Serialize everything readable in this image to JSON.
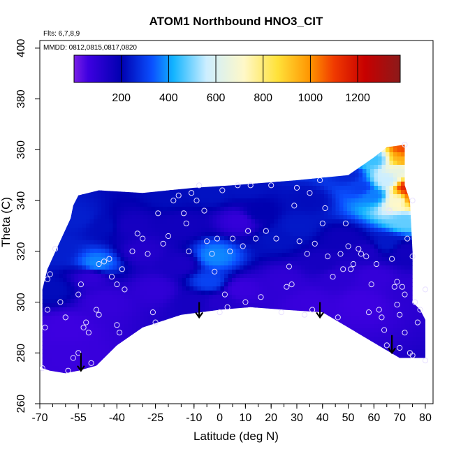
{
  "chart_data": {
    "type": "heatmap",
    "title": "ATOM1 Northbound HNO3_CIT",
    "flights_label": "Flts: 6,7,8,9",
    "mmdd_label": "MMDD: 0812,0815,0817,0820",
    "xlabel": "Latitude (deg N)",
    "ylabel": "Theta (C)",
    "xlim": [
      -70,
      83
    ],
    "ylim": [
      260,
      403
    ],
    "x_ticks": [
      -70,
      -55,
      -40,
      -25,
      -10,
      0,
      10,
      20,
      30,
      40,
      50,
      60,
      70,
      80
    ],
    "y_ticks": [
      260,
      280,
      300,
      320,
      340,
      360,
      380,
      400
    ],
    "colorbar": {
      "ticks": [
        200,
        400,
        600,
        800,
        1000,
        1200
      ],
      "range": [
        0,
        1380
      ],
      "colors": [
        "#7a1fe6",
        "#3d00e0",
        "#0000b0",
        "#0a50ff",
        "#12b4ff",
        "#cceeff",
        "#fff8c8",
        "#ffe23a",
        "#ff9400",
        "#f03a00",
        "#c80000",
        "#8b1a1a"
      ],
      "color_stops": [
        0,
        60,
        200,
        330,
        420,
        560,
        720,
        860,
        1000,
        1100,
        1230,
        1380
      ]
    },
    "field_boundary": [
      [
        -69,
        274
      ],
      [
        -69,
        305
      ],
      [
        -67,
        313
      ],
      [
        -63,
        322
      ],
      [
        -58,
        333
      ],
      [
        -57,
        338
      ],
      [
        -55,
        342
      ],
      [
        -47,
        344
      ],
      [
        -30,
        343
      ],
      [
        -10,
        345
      ],
      [
        5,
        346
      ],
      [
        30,
        348
      ],
      [
        50,
        350
      ],
      [
        60,
        357
      ],
      [
        65,
        361
      ],
      [
        72,
        362
      ],
      [
        72,
        346
      ],
      [
        74,
        340
      ],
      [
        75,
        320
      ],
      [
        75,
        300
      ],
      [
        78,
        297
      ],
      [
        80,
        293
      ],
      [
        80,
        278
      ],
      [
        70,
        278
      ],
      [
        60,
        284
      ],
      [
        40,
        296
      ],
      [
        25,
        297
      ],
      [
        12,
        298
      ],
      [
        0,
        297
      ],
      [
        -15,
        295
      ],
      [
        -30,
        290
      ],
      [
        -40,
        283
      ],
      [
        -48,
        275
      ],
      [
        -55,
        273
      ],
      [
        -60,
        272
      ],
      [
        -66,
        273
      ]
    ],
    "concentration_points": [
      {
        "lat": -50,
        "theta": 310,
        "value": 90
      },
      {
        "lat": -60,
        "theta": 290,
        "value": 60
      },
      {
        "lat": -45,
        "theta": 300,
        "value": 80
      },
      {
        "lat": -58,
        "theta": 278,
        "value": 70
      },
      {
        "lat": -35,
        "theta": 330,
        "value": 150
      },
      {
        "lat": -45,
        "theta": 330,
        "value": 220
      },
      {
        "lat": -55,
        "theta": 333,
        "value": 250
      },
      {
        "lat": -48,
        "theta": 315,
        "value": 380
      },
      {
        "lat": -30,
        "theta": 320,
        "value": 120
      },
      {
        "lat": -25,
        "theta": 305,
        "value": 90
      },
      {
        "lat": -15,
        "theta": 315,
        "value": 140
      },
      {
        "lat": -15,
        "theta": 330,
        "value": 160
      },
      {
        "lat": -20,
        "theta": 342,
        "value": 220
      },
      {
        "lat": -3,
        "theta": 343,
        "value": 230
      },
      {
        "lat": -2,
        "theta": 318,
        "value": 380
      },
      {
        "lat": -4,
        "theta": 308,
        "value": 310
      },
      {
        "lat": -10,
        "theta": 300,
        "value": 150
      },
      {
        "lat": 8,
        "theta": 332,
        "value": 80
      },
      {
        "lat": 8,
        "theta": 305,
        "value": 70
      },
      {
        "lat": 15,
        "theta": 335,
        "value": 200
      },
      {
        "lat": 22,
        "theta": 325,
        "value": 230
      },
      {
        "lat": 30,
        "theta": 330,
        "value": 240
      },
      {
        "lat": 35,
        "theta": 340,
        "value": 220
      },
      {
        "lat": 40,
        "theta": 315,
        "value": 150
      },
      {
        "lat": 25,
        "theta": 308,
        "value": 90
      },
      {
        "lat": 45,
        "theta": 310,
        "value": 100
      },
      {
        "lat": 48,
        "theta": 325,
        "value": 170
      },
      {
        "lat": 35,
        "theta": 300,
        "value": 70
      },
      {
        "lat": 55,
        "theta": 300,
        "value": 60
      },
      {
        "lat": 60,
        "theta": 310,
        "value": 80
      },
      {
        "lat": 57,
        "theta": 320,
        "value": 140
      },
      {
        "lat": 65,
        "theta": 323,
        "value": 240
      },
      {
        "lat": 72,
        "theta": 320,
        "value": 160
      },
      {
        "lat": 75,
        "theta": 305,
        "value": 100
      },
      {
        "lat": 60,
        "theta": 342,
        "value": 370
      },
      {
        "lat": 65,
        "theta": 348,
        "value": 560
      },
      {
        "lat": 70,
        "theta": 352,
        "value": 650
      },
      {
        "lat": 70,
        "theta": 340,
        "value": 700
      },
      {
        "lat": 72,
        "theta": 332,
        "value": 480
      },
      {
        "lat": 74,
        "theta": 341,
        "value": 1050
      },
      {
        "lat": 71,
        "theta": 356,
        "value": 950
      },
      {
        "lat": 72,
        "theta": 360,
        "value": 1080
      },
      {
        "lat": 73,
        "theta": 345,
        "value": 1150
      },
      {
        "lat": 55,
        "theta": 345,
        "value": 300
      },
      {
        "lat": 50,
        "theta": 350,
        "value": 260
      },
      {
        "lat": 60,
        "theta": 356,
        "value": 450
      },
      {
        "lat": -65,
        "theta": 305,
        "value": 220
      },
      {
        "lat": 10,
        "theta": 345,
        "value": 230
      },
      {
        "lat": 0,
        "theta": 300,
        "value": 120
      },
      {
        "lat": -63,
        "theta": 320,
        "value": 250
      }
    ],
    "sample_points": [
      [
        -69,
        274
      ],
      [
        -68,
        290
      ],
      [
        -67,
        297
      ],
      [
        -67,
        309
      ],
      [
        -66,
        311
      ],
      [
        -64,
        321
      ],
      [
        -62,
        300
      ],
      [
        -60,
        294
      ],
      [
        -59,
        273
      ],
      [
        -57,
        278
      ],
      [
        -55,
        280
      ],
      [
        -55,
        303
      ],
      [
        -54,
        307
      ],
      [
        -53,
        290
      ],
      [
        -52,
        292
      ],
      [
        -51,
        288
      ],
      [
        -50,
        276
      ],
      [
        -48,
        297
      ],
      [
        -47,
        295
      ],
      [
        -47,
        315
      ],
      [
        -45,
        316
      ],
      [
        -43,
        317
      ],
      [
        -42,
        310
      ],
      [
        -40,
        307
      ],
      [
        -40,
        291
      ],
      [
        -39,
        288
      ],
      [
        -38,
        313
      ],
      [
        -37,
        305
      ],
      [
        -34,
        320
      ],
      [
        -32,
        327
      ],
      [
        -30,
        325
      ],
      [
        -28,
        319
      ],
      [
        -26,
        296
      ],
      [
        -25,
        292
      ],
      [
        -24,
        335
      ],
      [
        -22,
        323
      ],
      [
        -20,
        326
      ],
      [
        -18,
        340
      ],
      [
        -16,
        342
      ],
      [
        -14,
        335
      ],
      [
        -13,
        331
      ],
      [
        -12,
        320
      ],
      [
        -11,
        343
      ],
      [
        -9,
        340
      ],
      [
        -8,
        346
      ],
      [
        -6,
        336
      ],
      [
        -5,
        324
      ],
      [
        -3,
        319
      ],
      [
        -2,
        312
      ],
      [
        -1,
        325
      ],
      [
        0,
        296
      ],
      [
        1,
        344
      ],
      [
        2,
        303
      ],
      [
        3,
        298
      ],
      [
        4,
        320
      ],
      [
        5,
        325
      ],
      [
        7,
        346
      ],
      [
        9,
        322
      ],
      [
        10,
        300
      ],
      [
        11,
        328
      ],
      [
        12,
        346
      ],
      [
        14,
        325
      ],
      [
        16,
        302
      ],
      [
        18,
        328
      ],
      [
        20,
        346
      ],
      [
        22,
        325
      ],
      [
        24,
        296
      ],
      [
        26,
        306
      ],
      [
        27,
        314
      ],
      [
        28,
        307
      ],
      [
        29,
        338
      ],
      [
        30,
        345
      ],
      [
        31,
        324
      ],
      [
        33,
        295
      ],
      [
        34,
        319
      ],
      [
        35,
        343
      ],
      [
        36,
        297
      ],
      [
        37,
        323
      ],
      [
        39,
        348
      ],
      [
        40,
        331
      ],
      [
        41,
        337
      ],
      [
        42,
        318
      ],
      [
        44,
        310
      ],
      [
        46,
        294
      ],
      [
        47,
        319
      ],
      [
        48,
        313
      ],
      [
        49,
        331
      ],
      [
        50,
        322
      ],
      [
        51,
        313
      ],
      [
        52,
        315
      ],
      [
        54,
        321
      ],
      [
        55,
        319
      ],
      [
        57,
        318
      ],
      [
        58,
        296
      ],
      [
        59,
        307
      ],
      [
        61,
        315
      ],
      [
        62,
        297
      ],
      [
        63,
        294
      ],
      [
        64,
        289
      ],
      [
        65,
        283
      ],
      [
        66,
        336
      ],
      [
        67,
        317
      ],
      [
        68,
        306
      ],
      [
        69,
        308
      ],
      [
        69,
        299
      ],
      [
        70,
        295
      ],
      [
        70,
        282
      ],
      [
        71,
        306
      ],
      [
        72,
        303
      ],
      [
        72,
        288
      ],
      [
        73,
        325
      ],
      [
        74,
        280
      ],
      [
        75,
        279
      ],
      [
        76,
        300
      ],
      [
        77,
        292
      ],
      [
        78,
        297
      ],
      [
        80,
        305
      ],
      [
        80,
        277
      ],
      [
        72,
        362
      ],
      [
        75,
        340
      ],
      [
        75,
        318
      ]
    ],
    "arrows": [
      {
        "lat": -54,
        "theta_top": 280,
        "theta_bottom": 273
      },
      {
        "lat": -8,
        "theta_top": 300,
        "theta_bottom": 294
      },
      {
        "lat": 39,
        "theta_top": 300,
        "theta_bottom": 294
      },
      {
        "lat": 67,
        "theta_top": 287,
        "theta_bottom": 280
      }
    ]
  }
}
